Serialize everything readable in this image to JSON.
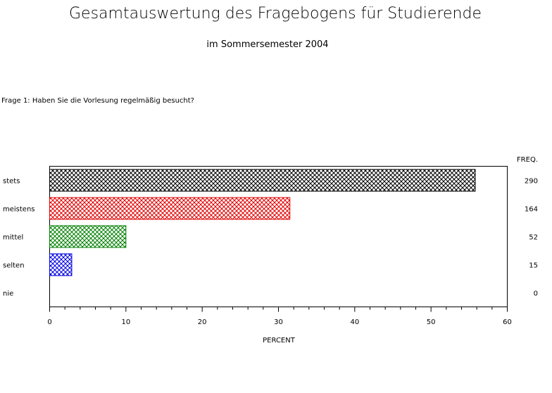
{
  "header": {
    "title": "Gesamtauswertung des Fragebogens für Studierende",
    "subtitle": "im Sommersemester 2004"
  },
  "question": "Frage 1: Haben Sie die Vorlesung regelmäßig besucht?",
  "chart_data": {
    "type": "bar",
    "orientation": "horizontal",
    "categories": [
      "stets",
      "meistens",
      "mittel",
      "selten",
      "nie"
    ],
    "values": [
      55.8,
      31.5,
      10.0,
      2.9,
      0.0
    ],
    "freq": [
      290,
      164,
      52,
      15,
      0
    ],
    "freq_header": "FREQ.",
    "xlabel": "PERCENT",
    "xlim": [
      0,
      60
    ],
    "ticks": [
      0,
      10,
      20,
      30,
      40,
      50,
      60
    ],
    "grid": false,
    "colors": [
      "#000000",
      "#e00000",
      "#008000",
      "#0000e0",
      "#e0a000"
    ],
    "fill_pattern": "crosshatch"
  }
}
